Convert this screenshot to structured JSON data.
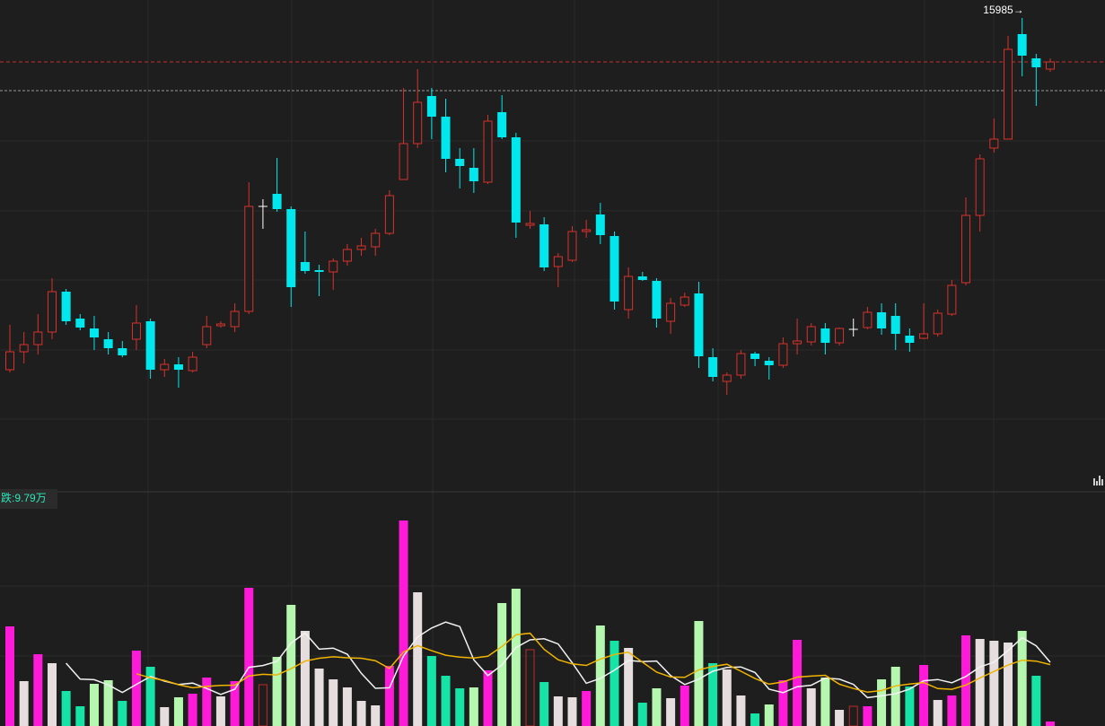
{
  "chart_data": {
    "type": "candlestick",
    "high_label": "15985→",
    "ylim": [
      13360,
      16085
    ],
    "reference_line": 15580,
    "up_color": "#d8322c",
    "down_color": "#00e8ee",
    "flat_color": "#ffffff",
    "open": [
      14025,
      14125,
      14165,
      14235,
      14460,
      14310,
      14255,
      14195,
      14145,
      14195,
      14295,
      14025,
      14055,
      14020,
      14165,
      14270,
      14265,
      14350,
      14935,
      15005,
      14920,
      14625,
      14580,
      14570,
      14630,
      14695,
      14710,
      14785,
      15085,
      15285,
      15550,
      15435,
      15200,
      15150,
      15070,
      15460,
      15320,
      14830,
      14835,
      14600,
      14635,
      14795,
      14890,
      14770,
      14360,
      14545,
      14520,
      14295,
      14385,
      14450,
      14095,
      13960,
      13995,
      14115,
      14075,
      14050,
      14170,
      14180,
      14255,
      14175,
      14250,
      14260,
      14345,
      14325,
      14215,
      14200,
      14225,
      14335,
      14510,
      14885,
      15260,
      15310,
      15895,
      15760,
      15700
    ],
    "high": [
      14275,
      14235,
      14335,
      14535,
      14475,
      14335,
      14325,
      14235,
      14185,
      14385,
      14310,
      14085,
      14095,
      14125,
      14325,
      14295,
      14395,
      15070,
      14975,
      15205,
      14935,
      14795,
      14610,
      14645,
      14725,
      14760,
      14810,
      15025,
      15595,
      15700,
      15595,
      15535,
      15260,
      15260,
      15445,
      15555,
      15345,
      14910,
      14875,
      14675,
      14825,
      14860,
      14955,
      14795,
      14595,
      14570,
      14535,
      14425,
      14455,
      14515,
      14145,
      14010,
      14135,
      14125,
      14095,
      14205,
      14310,
      14285,
      14285,
      14260,
      14310,
      14375,
      14395,
      14395,
      14255,
      14395,
      14360,
      14525,
      14985,
      15225,
      15425,
      15885,
      15985,
      15785,
      15760
    ],
    "low": [
      14010,
      14060,
      14110,
      14195,
      14275,
      14245,
      14135,
      14110,
      14095,
      14135,
      13975,
      13985,
      13925,
      14010,
      14145,
      14260,
      14235,
      14335,
      14810,
      14905,
      14375,
      14560,
      14435,
      14470,
      14605,
      14660,
      14660,
      14775,
      15085,
      15260,
      15310,
      15125,
      15035,
      15010,
      15060,
      15310,
      14760,
      14810,
      14575,
      14485,
      14625,
      14760,
      14725,
      14360,
      14310,
      14520,
      14260,
      14225,
      14375,
      14035,
      13960,
      13885,
      13975,
      14045,
      13970,
      14035,
      14110,
      14160,
      14110,
      14160,
      14210,
      14250,
      14220,
      14135,
      14125,
      14195,
      14210,
      14325,
      14495,
      14795,
      15235,
      15310,
      15660,
      15495,
      15685
    ],
    "close": [
      14125,
      14165,
      14235,
      14460,
      14295,
      14260,
      14205,
      14145,
      14105,
      14285,
      14025,
      14055,
      14025,
      14095,
      14265,
      14280,
      14350,
      14935,
      14935,
      14920,
      14485,
      14575,
      14570,
      14630,
      14695,
      14715,
      14785,
      14995,
      15285,
      15515,
      15435,
      15200,
      15160,
      15075,
      15410,
      15320,
      14845,
      14840,
      14595,
      14655,
      14795,
      14805,
      14775,
      14405,
      14545,
      14525,
      14310,
      14395,
      14430,
      14100,
      13985,
      13995,
      14115,
      14085,
      14050,
      14170,
      14185,
      14265,
      14175,
      14255,
      14250,
      14345,
      14255,
      14225,
      14175,
      14225,
      14340,
      14495,
      14885,
      15200,
      15310,
      15810,
      15775,
      15710,
      15740
    ],
    "volume": {
      "type": "bar",
      "label": "跌:9.79万",
      "ylim": [
        0,
        23.6
      ],
      "ma_periods": [
        5,
        10
      ],
      "ma_colors": [
        "#f2f2f2",
        "#f0b400"
      ],
      "hollow_color": "#c02a2a",
      "values": [
        11.1,
        5.0,
        8.0,
        7.0,
        3.9,
        2.2,
        4.7,
        5.1,
        2.8,
        8.4,
        6.6,
        2.1,
        3.2,
        3.6,
        5.4,
        3.3,
        5.0,
        15.4,
        4.6,
        7.7,
        13.5,
        10.6,
        6.4,
        5.2,
        4.3,
        2.8,
        2.3,
        6.7,
        22.9,
        14.9,
        7.8,
        5.6,
        4.2,
        4.3,
        6.2,
        13.7,
        15.3,
        8.5,
        4.9,
        3.3,
        3.2,
        3.9,
        11.2,
        9.5,
        8.7,
        2.6,
        4.2,
        3.1,
        4.5,
        11.7,
        7.0,
        6.3,
        3.4,
        1.4,
        2.4,
        5.1,
        9.6,
        4.2,
        5.4,
        1.8,
        2.2,
        2.2,
        5.2,
        6.6,
        4.4,
        6.8,
        2.9,
        3.4,
        10.1,
        9.7,
        9.5,
        9.3,
        10.6,
        5.6,
        0.5
      ],
      "colors": [
        "#ff1ad9",
        "#e6dede",
        "#ff1ad9",
        "#e6dede",
        "#16e3a6",
        "#16e3a6",
        "#b6f7b0",
        "#b6f7b0",
        "#16e3a6",
        "#ff1ad9",
        "#16e3a6",
        "#e6dede",
        "#b6f7b0",
        "#ff1ad9",
        "#ff1ad9",
        "#e6dede",
        "#ff1ad9",
        "#ff1ad9",
        "#c02a2a",
        "#b6f7b0",
        "#b6f7b0",
        "#e6dede",
        "#e6dede",
        "#e6dede",
        "#e6dede",
        "#e6dede",
        "#e6dede",
        "#ff1ad9",
        "#ff1ad9",
        "#e6dede",
        "#16e3a6",
        "#16e3a6",
        "#16e3a6",
        "#b6f7b0",
        "#ff1ad9",
        "#b6f7b0",
        "#b6f7b0",
        "#c02a2a",
        "#16e3a6",
        "#e6dede",
        "#e6dede",
        "#ff1ad9",
        "#b6f7b0",
        "#16e3a6",
        "#e6dede",
        "#16e3a6",
        "#b6f7b0",
        "#e6dede",
        "#ff1ad9",
        "#b6f7b0",
        "#16e3a6",
        "#e6dede",
        "#e6dede",
        "#16e3a6",
        "#b6f7b0",
        "#ff1ad9",
        "#ff1ad9",
        "#e6dede",
        "#b6f7b0",
        "#e6dede",
        "#c02a2a",
        "#ff1ad9",
        "#b6f7b0",
        "#b6f7b0",
        "#16e3a6",
        "#ff1ad9",
        "#e6dede",
        "#ff1ad9",
        "#ff1ad9",
        "#e6dede",
        "#e6dede",
        "#e6dede",
        "#b6f7b0",
        "#16e3a6",
        "#ff1ad9"
      ]
    }
  }
}
